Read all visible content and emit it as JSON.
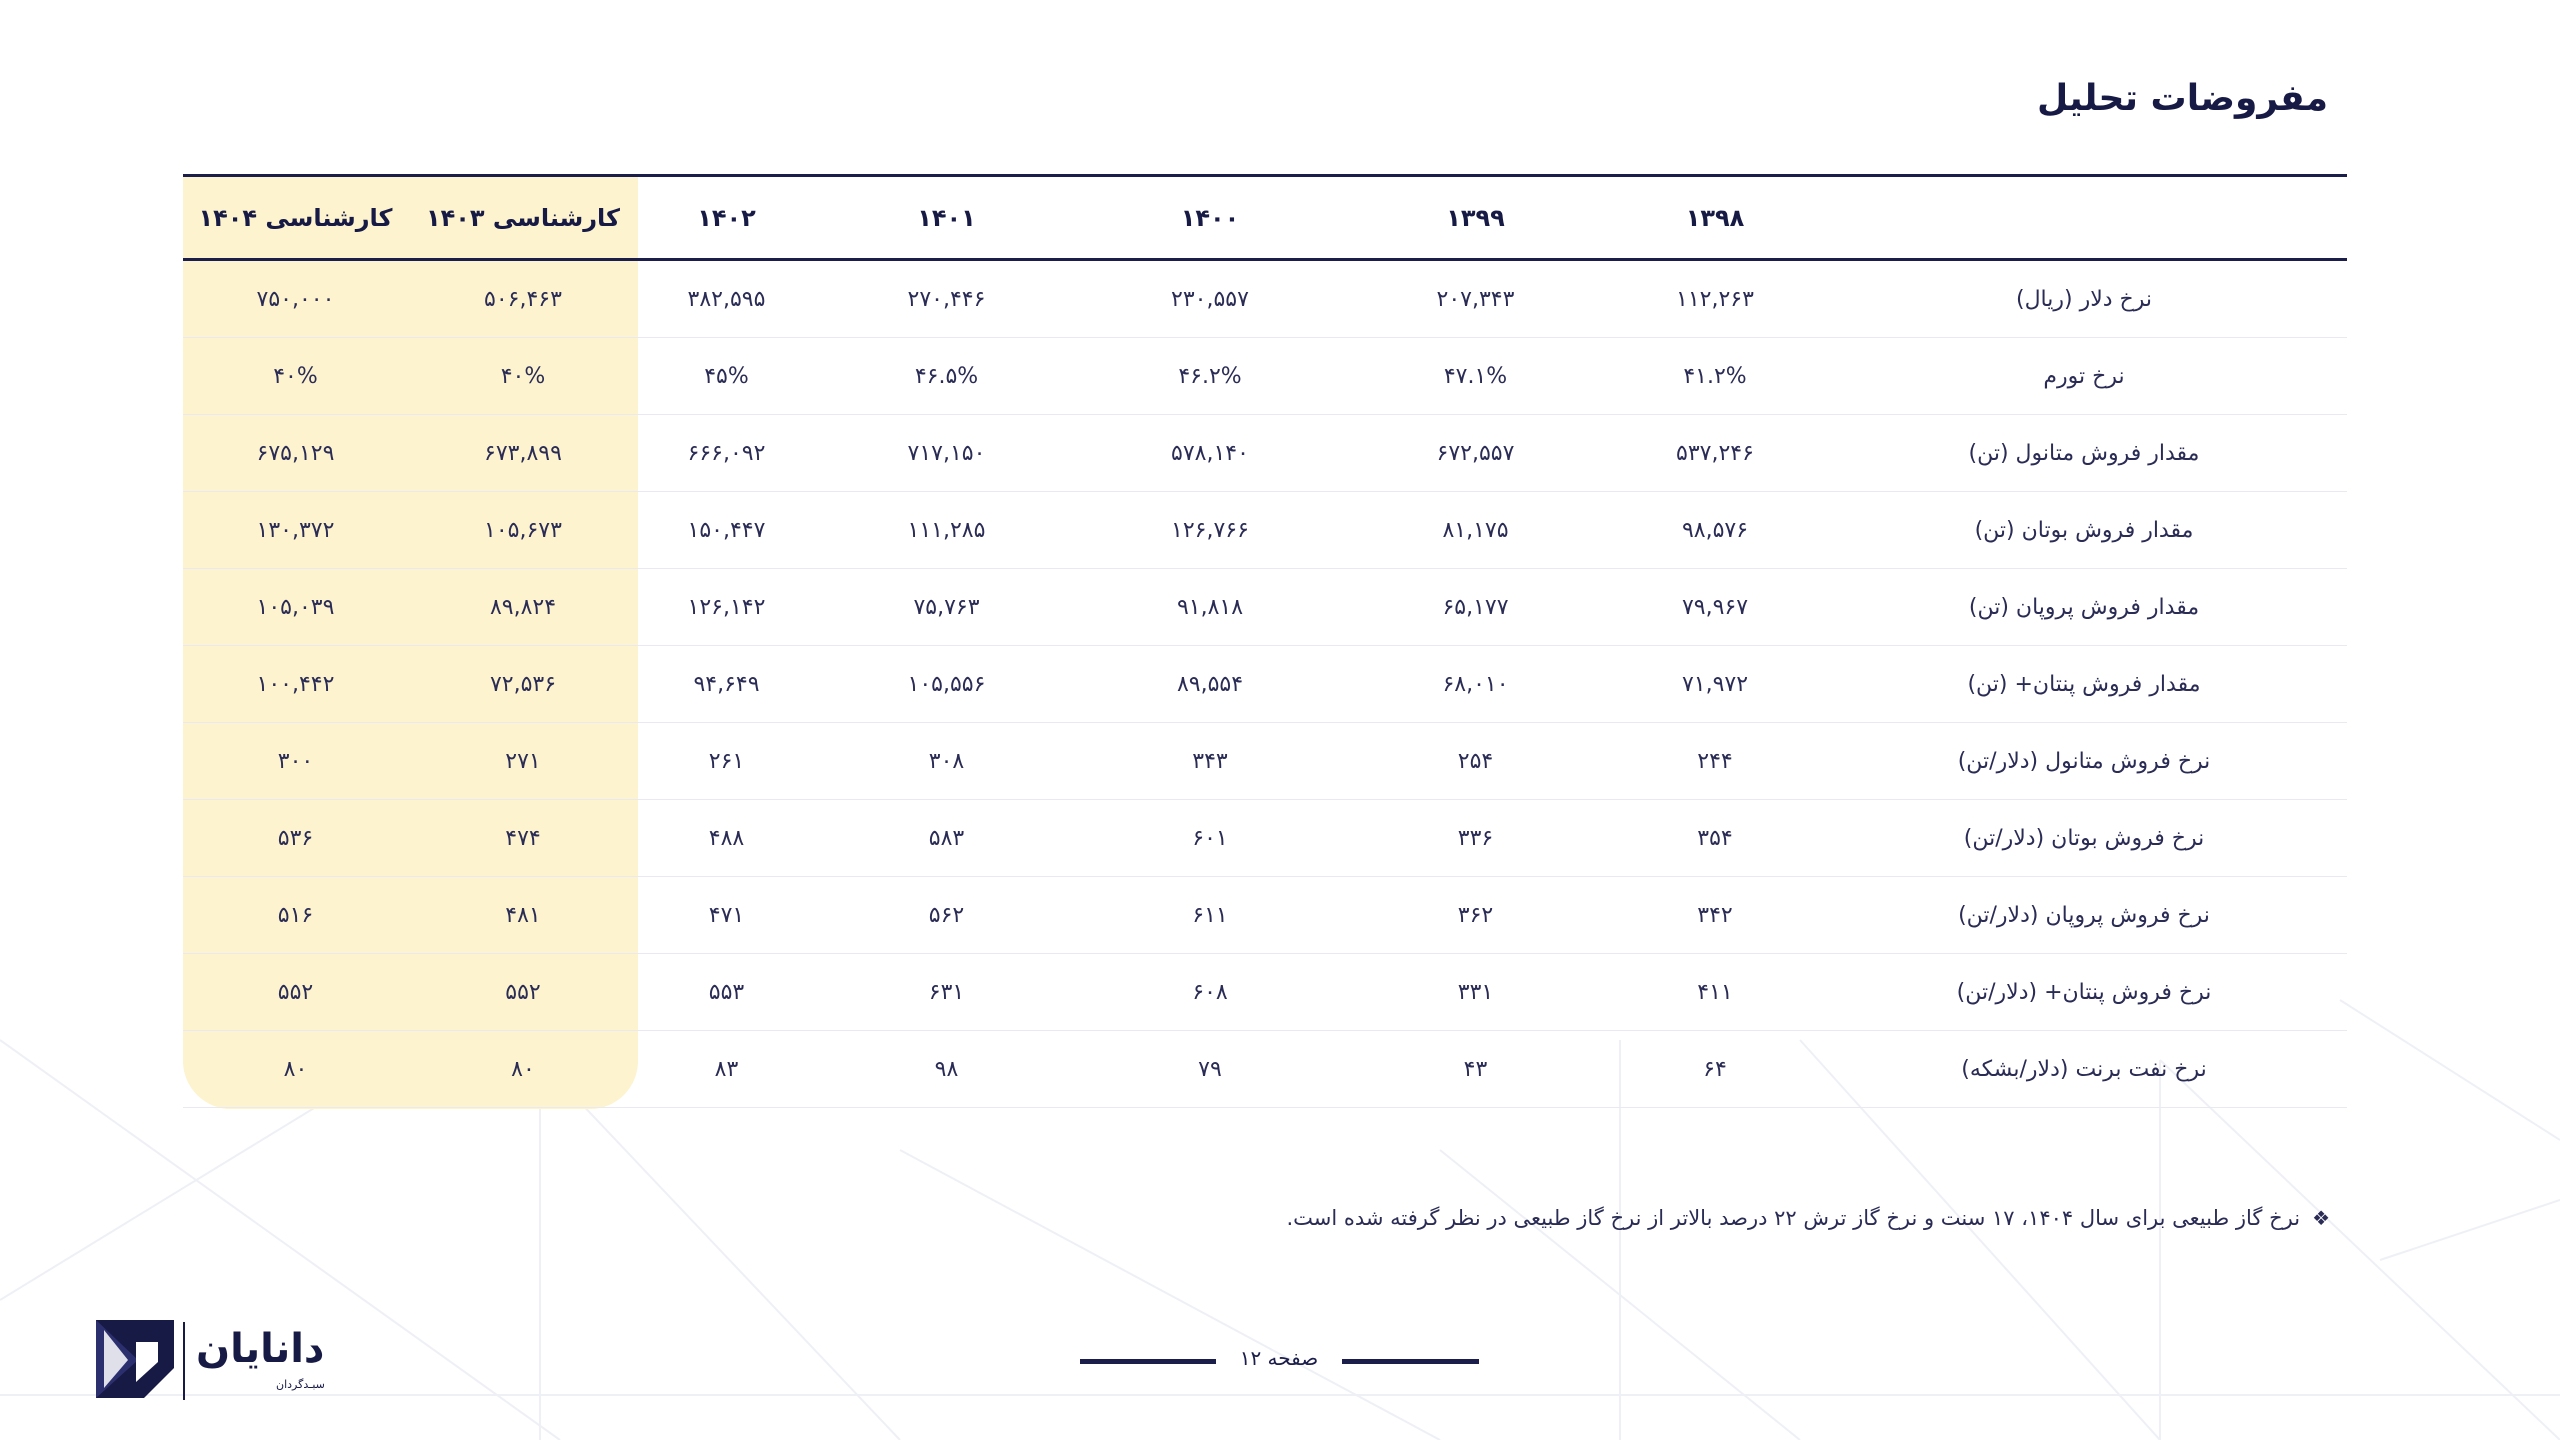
{
  "title": "مفروضات تحلیل",
  "table": {
    "headers": [
      "",
      "۱۳۹۸",
      "۱۳۹۹",
      "۱۴۰۰",
      "۱۴۰۱",
      "۱۴۰۲",
      "کارشناسی ۱۴۰۳",
      "کارشناسی ۱۴۰۴"
    ],
    "rows": [
      {
        "label": "نرخ دلار (ریال)",
        "values": [
          "۱۱۲,۲۶۳",
          "۲۰۷,۳۴۳",
          "۲۳۰,۵۵۷",
          "۲۷۰,۴۴۶",
          "۳۸۲,۵۹۵",
          "۵۰۶,۴۶۳",
          "۷۵۰,۰۰۰"
        ]
      },
      {
        "label": "نرخ تورم",
        "values": [
          "۴۱.۲%",
          "۴۷.۱%",
          "۴۶.۲%",
          "۴۶.۵%",
          "۴۵%",
          "۴۰%",
          "۴۰%"
        ]
      },
      {
        "label": "مقدار فروش متانول (تن)",
        "values": [
          "۵۳۷,۲۴۶",
          "۶۷۲,۵۵۷",
          "۵۷۸,۱۴۰",
          "۷۱۷,۱۵۰",
          "۶۶۶,۰۹۲",
          "۶۷۳,۸۹۹",
          "۶۷۵,۱۲۹"
        ]
      },
      {
        "label": "مقدار فروش بوتان (تن)",
        "values": [
          "۹۸,۵۷۶",
          "۸۱,۱۷۵",
          "۱۲۶,۷۶۶",
          "۱۱۱,۲۸۵",
          "۱۵۰,۴۴۷",
          "۱۰۵,۶۷۳",
          "۱۳۰,۳۷۲"
        ]
      },
      {
        "label": "مقدار فروش پروپان (تن)",
        "values": [
          "۷۹,۹۶۷",
          "۶۵,۱۷۷",
          "۹۱,۸۱۸",
          "۷۵,۷۶۳",
          "۱۲۶,۱۴۲",
          "۸۹,۸۲۴",
          "۱۰۵,۰۳۹"
        ]
      },
      {
        "label": "مقدار فروش پنتان+ (تن)",
        "values": [
          "۷۱,۹۷۲",
          "۶۸,۰۱۰",
          "۸۹,۵۵۴",
          "۱۰۵,۵۵۶",
          "۹۴,۶۴۹",
          "۷۲,۵۳۶",
          "۱۰۰,۴۴۲"
        ]
      },
      {
        "label": "نرخ فروش متانول (دلار/تن)",
        "values": [
          "۲۴۴",
          "۲۵۴",
          "۳۴۳",
          "۳۰۸",
          "۲۶۱",
          "۲۷۱",
          "۳۰۰"
        ]
      },
      {
        "label": "نرخ فروش بوتان (دلار/تن)",
        "values": [
          "۳۵۴",
          "۳۳۶",
          "۶۰۱",
          "۵۸۳",
          "۴۸۸",
          "۴۷۴",
          "۵۳۶"
        ]
      },
      {
        "label": "نرخ فروش پروپان (دلار/تن)",
        "values": [
          "۳۴۲",
          "۳۶۲",
          "۶۱۱",
          "۵۶۲",
          "۴۷۱",
          "۴۸۱",
          "۵۱۶"
        ]
      },
      {
        "label": "نرخ فروش پنتان+ (دلار/تن)",
        "values": [
          "۴۱۱",
          "۳۳۱",
          "۶۰۸",
          "۶۳۱",
          "۵۵۳",
          "۵۵۲",
          "۵۵۲"
        ]
      },
      {
        "label": "نرخ نفت برنت (دلار/بشکه)",
        "values": [
          "۶۴",
          "۴۳",
          "۷۹",
          "۹۸",
          "۸۳",
          "۸۰",
          "۸۰"
        ]
      }
    ]
  },
  "note": "نرخ گاز طبیعی برای سال ۱۴۰۴، ۱۷ سنت و نرخ گاز ترش ۲۲ درصد بالاتر از نرخ گاز طبیعی در نظر گرفته شده است.",
  "note_bullet": "❖",
  "footer": {
    "page_label": "صفحه ۱۲"
  },
  "logo": {
    "name": "دانایان",
    "subtitle": "سبـدگردان"
  },
  "colors": {
    "primary": "#1b1d4a",
    "highlight": "#fdf3cf"
  }
}
